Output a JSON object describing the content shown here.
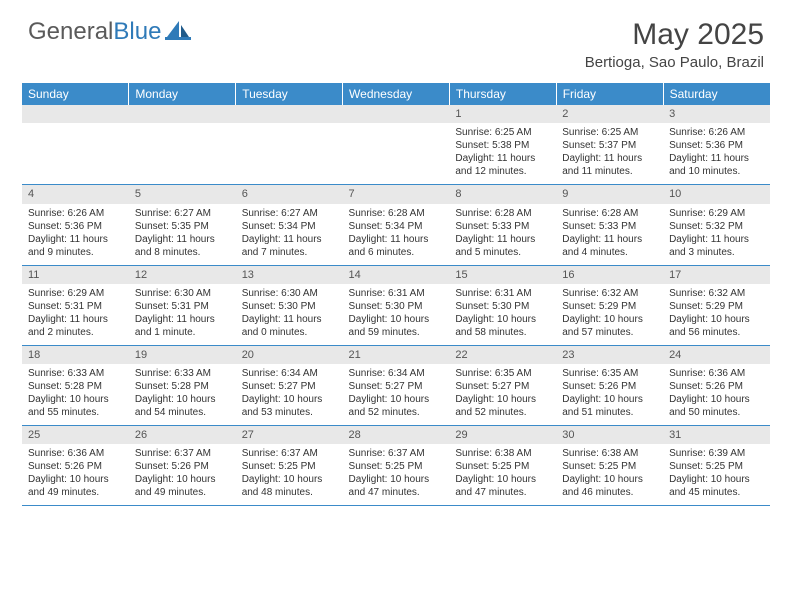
{
  "logo": {
    "text_gray": "General",
    "text_blue": "Blue"
  },
  "title": "May 2025",
  "location": "Bertioga, Sao Paulo, Brazil",
  "colors": {
    "header_bg": "#3b8bc9",
    "header_text": "#ffffff",
    "daynum_bg": "#e8e8e8",
    "border": "#3b8bc9",
    "logo_gray": "#5a5a5a",
    "logo_blue": "#2f7ab8"
  },
  "day_headers": [
    "Sunday",
    "Monday",
    "Tuesday",
    "Wednesday",
    "Thursday",
    "Friday",
    "Saturday"
  ],
  "weeks": [
    [
      null,
      null,
      null,
      null,
      {
        "n": "1",
        "sr": "Sunrise: 6:25 AM",
        "ss": "Sunset: 5:38 PM",
        "dl": "Daylight: 11 hours and 12 minutes."
      },
      {
        "n": "2",
        "sr": "Sunrise: 6:25 AM",
        "ss": "Sunset: 5:37 PM",
        "dl": "Daylight: 11 hours and 11 minutes."
      },
      {
        "n": "3",
        "sr": "Sunrise: 6:26 AM",
        "ss": "Sunset: 5:36 PM",
        "dl": "Daylight: 11 hours and 10 minutes."
      }
    ],
    [
      {
        "n": "4",
        "sr": "Sunrise: 6:26 AM",
        "ss": "Sunset: 5:36 PM",
        "dl": "Daylight: 11 hours and 9 minutes."
      },
      {
        "n": "5",
        "sr": "Sunrise: 6:27 AM",
        "ss": "Sunset: 5:35 PM",
        "dl": "Daylight: 11 hours and 8 minutes."
      },
      {
        "n": "6",
        "sr": "Sunrise: 6:27 AM",
        "ss": "Sunset: 5:34 PM",
        "dl": "Daylight: 11 hours and 7 minutes."
      },
      {
        "n": "7",
        "sr": "Sunrise: 6:28 AM",
        "ss": "Sunset: 5:34 PM",
        "dl": "Daylight: 11 hours and 6 minutes."
      },
      {
        "n": "8",
        "sr": "Sunrise: 6:28 AM",
        "ss": "Sunset: 5:33 PM",
        "dl": "Daylight: 11 hours and 5 minutes."
      },
      {
        "n": "9",
        "sr": "Sunrise: 6:28 AM",
        "ss": "Sunset: 5:33 PM",
        "dl": "Daylight: 11 hours and 4 minutes."
      },
      {
        "n": "10",
        "sr": "Sunrise: 6:29 AM",
        "ss": "Sunset: 5:32 PM",
        "dl": "Daylight: 11 hours and 3 minutes."
      }
    ],
    [
      {
        "n": "11",
        "sr": "Sunrise: 6:29 AM",
        "ss": "Sunset: 5:31 PM",
        "dl": "Daylight: 11 hours and 2 minutes."
      },
      {
        "n": "12",
        "sr": "Sunrise: 6:30 AM",
        "ss": "Sunset: 5:31 PM",
        "dl": "Daylight: 11 hours and 1 minute."
      },
      {
        "n": "13",
        "sr": "Sunrise: 6:30 AM",
        "ss": "Sunset: 5:30 PM",
        "dl": "Daylight: 11 hours and 0 minutes."
      },
      {
        "n": "14",
        "sr": "Sunrise: 6:31 AM",
        "ss": "Sunset: 5:30 PM",
        "dl": "Daylight: 10 hours and 59 minutes."
      },
      {
        "n": "15",
        "sr": "Sunrise: 6:31 AM",
        "ss": "Sunset: 5:30 PM",
        "dl": "Daylight: 10 hours and 58 minutes."
      },
      {
        "n": "16",
        "sr": "Sunrise: 6:32 AM",
        "ss": "Sunset: 5:29 PM",
        "dl": "Daylight: 10 hours and 57 minutes."
      },
      {
        "n": "17",
        "sr": "Sunrise: 6:32 AM",
        "ss": "Sunset: 5:29 PM",
        "dl": "Daylight: 10 hours and 56 minutes."
      }
    ],
    [
      {
        "n": "18",
        "sr": "Sunrise: 6:33 AM",
        "ss": "Sunset: 5:28 PM",
        "dl": "Daylight: 10 hours and 55 minutes."
      },
      {
        "n": "19",
        "sr": "Sunrise: 6:33 AM",
        "ss": "Sunset: 5:28 PM",
        "dl": "Daylight: 10 hours and 54 minutes."
      },
      {
        "n": "20",
        "sr": "Sunrise: 6:34 AM",
        "ss": "Sunset: 5:27 PM",
        "dl": "Daylight: 10 hours and 53 minutes."
      },
      {
        "n": "21",
        "sr": "Sunrise: 6:34 AM",
        "ss": "Sunset: 5:27 PM",
        "dl": "Daylight: 10 hours and 52 minutes."
      },
      {
        "n": "22",
        "sr": "Sunrise: 6:35 AM",
        "ss": "Sunset: 5:27 PM",
        "dl": "Daylight: 10 hours and 52 minutes."
      },
      {
        "n": "23",
        "sr": "Sunrise: 6:35 AM",
        "ss": "Sunset: 5:26 PM",
        "dl": "Daylight: 10 hours and 51 minutes."
      },
      {
        "n": "24",
        "sr": "Sunrise: 6:36 AM",
        "ss": "Sunset: 5:26 PM",
        "dl": "Daylight: 10 hours and 50 minutes."
      }
    ],
    [
      {
        "n": "25",
        "sr": "Sunrise: 6:36 AM",
        "ss": "Sunset: 5:26 PM",
        "dl": "Daylight: 10 hours and 49 minutes."
      },
      {
        "n": "26",
        "sr": "Sunrise: 6:37 AM",
        "ss": "Sunset: 5:26 PM",
        "dl": "Daylight: 10 hours and 49 minutes."
      },
      {
        "n": "27",
        "sr": "Sunrise: 6:37 AM",
        "ss": "Sunset: 5:25 PM",
        "dl": "Daylight: 10 hours and 48 minutes."
      },
      {
        "n": "28",
        "sr": "Sunrise: 6:37 AM",
        "ss": "Sunset: 5:25 PM",
        "dl": "Daylight: 10 hours and 47 minutes."
      },
      {
        "n": "29",
        "sr": "Sunrise: 6:38 AM",
        "ss": "Sunset: 5:25 PM",
        "dl": "Daylight: 10 hours and 47 minutes."
      },
      {
        "n": "30",
        "sr": "Sunrise: 6:38 AM",
        "ss": "Sunset: 5:25 PM",
        "dl": "Daylight: 10 hours and 46 minutes."
      },
      {
        "n": "31",
        "sr": "Sunrise: 6:39 AM",
        "ss": "Sunset: 5:25 PM",
        "dl": "Daylight: 10 hours and 45 minutes."
      }
    ]
  ]
}
